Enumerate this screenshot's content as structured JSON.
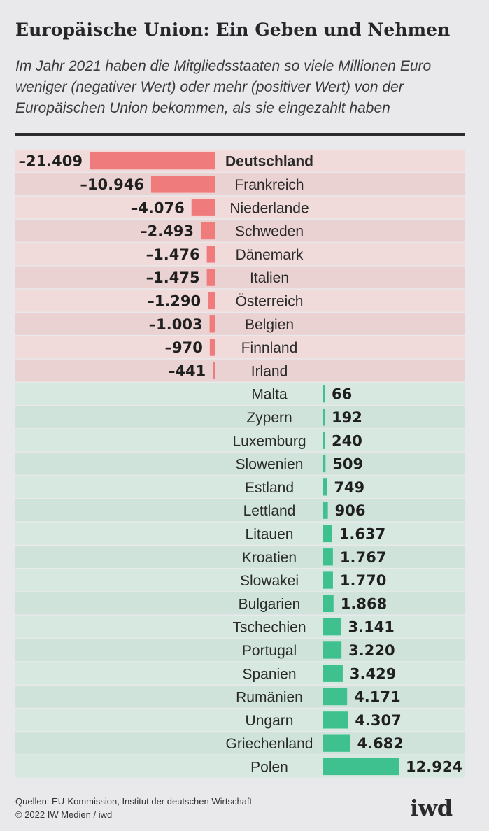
{
  "header": {
    "title": "Europäische Union: Ein Geben und Nehmen",
    "subtitle": "Im Jahr 2021 haben die Mitgliedsstaaten so viele Millionen Euro weniger (negativer Wert) oder mehr (positiver Wert) von der Europäischen Union bekommen, als sie eingezahlt haben"
  },
  "colors": {
    "negative_bar": "#f07b7d",
    "positive_bar": "#3ec18f",
    "negative_row": "#f0dada",
    "positive_row": "#d7e8e1"
  },
  "chart_data": {
    "type": "bar",
    "orientation": "horizontal",
    "unit": "Millionen Euro",
    "categories": [
      "Deutschland",
      "Frankreich",
      "Niederlande",
      "Schweden",
      "Dänemark",
      "Italien",
      "Österreich",
      "Belgien",
      "Finnland",
      "Irland",
      "Malta",
      "Zypern",
      "Luxemburg",
      "Slowenien",
      "Estland",
      "Lettland",
      "Litauen",
      "Kroatien",
      "Slowakei",
      "Bulgarien",
      "Tschechien",
      "Portugal",
      "Spanien",
      "Rumänien",
      "Ungarn",
      "Griechenland",
      "Polen"
    ],
    "values": [
      -21409,
      -10946,
      -4076,
      -2493,
      -1476,
      -1475,
      -1290,
      -1003,
      -970,
      -441,
      66,
      192,
      240,
      509,
      749,
      906,
      1637,
      1767,
      1770,
      1868,
      3141,
      3220,
      3429,
      4171,
      4307,
      4682,
      12924
    ],
    "value_labels": [
      "–21.409",
      "–10.946",
      "–4.076",
      "–2.493",
      "–1.476",
      "–1.475",
      "–1.290",
      "–1.003",
      "–970",
      "–441",
      "66",
      "192",
      "240",
      "509",
      "749",
      "906",
      "1.637",
      "1.767",
      "1.770",
      "1.868",
      "3.141",
      "3.220",
      "3.429",
      "4.171",
      "4.307",
      "4.682",
      "12.924"
    ],
    "highlight": "Deutschland"
  },
  "footer": {
    "sources": "Quellen: EU-Kommission, Institut der deutschen Wirtschaft",
    "copyright": "© 2022 IW Medien / iwd",
    "logo": "iwd"
  }
}
